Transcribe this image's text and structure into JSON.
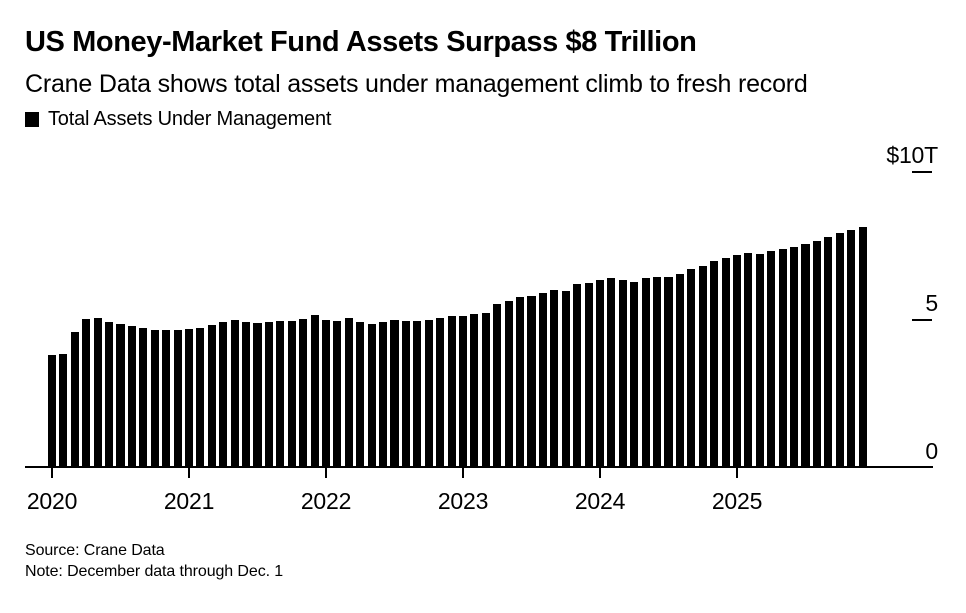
{
  "header": {
    "title": "US Money-Market Fund Assets Surpass $8 Trillion",
    "subtitle": "Crane Data shows total assets under management climb to fresh record"
  },
  "legend": {
    "label": "Total Assets Under Management",
    "swatch_color": "#000000"
  },
  "chart_data": {
    "type": "bar",
    "title": "US Money-Market Fund Assets Surpass $8 Trillion",
    "subtitle": "Crane Data shows total assets under management climb to fresh record",
    "series_name": "Total Assets Under Management",
    "unit": "USD trillions",
    "bar_color": "#000000",
    "background_color": "#ffffff",
    "grid": false,
    "legend_position": "top-left",
    "ylim": [
      0,
      10
    ],
    "y_ticks": [
      {
        "label": "$10T",
        "value": 10,
        "dash": true
      },
      {
        "label": "5",
        "value": 5,
        "dash": true
      },
      {
        "label": "0",
        "value": 0,
        "dash": false
      }
    ],
    "x_tick_labels": [
      "2020",
      "2021",
      "2022",
      "2023",
      "2024",
      "2025"
    ],
    "x": [
      "2020-01",
      "2020-02",
      "2020-03",
      "2020-04",
      "2020-05",
      "2020-06",
      "2020-07",
      "2020-08",
      "2020-09",
      "2020-10",
      "2020-11",
      "2020-12",
      "2021-01",
      "2021-02",
      "2021-03",
      "2021-04",
      "2021-05",
      "2021-06",
      "2021-07",
      "2021-08",
      "2021-09",
      "2021-10",
      "2021-11",
      "2021-12",
      "2022-01",
      "2022-02",
      "2022-03",
      "2022-04",
      "2022-05",
      "2022-06",
      "2022-07",
      "2022-08",
      "2022-09",
      "2022-10",
      "2022-11",
      "2022-12",
      "2023-01",
      "2023-02",
      "2023-03",
      "2023-04",
      "2023-05",
      "2023-06",
      "2023-07",
      "2023-08",
      "2023-09",
      "2023-10",
      "2023-11",
      "2023-12",
      "2024-01",
      "2024-02",
      "2024-03",
      "2024-04",
      "2024-05",
      "2024-06",
      "2024-07",
      "2024-08",
      "2024-09",
      "2024-10",
      "2024-11",
      "2024-12",
      "2025-01",
      "2025-02",
      "2025-03",
      "2025-04",
      "2025-05",
      "2025-06",
      "2025-07",
      "2025-08",
      "2025-09",
      "2025-10",
      "2025-11",
      "2025-12"
    ],
    "values": [
      3.76,
      3.78,
      4.52,
      4.97,
      5.01,
      4.88,
      4.8,
      4.74,
      4.66,
      4.6,
      4.59,
      4.61,
      4.63,
      4.65,
      4.77,
      4.87,
      4.95,
      4.88,
      4.84,
      4.86,
      4.89,
      4.91,
      4.97,
      5.09,
      4.93,
      4.9,
      4.99,
      4.86,
      4.81,
      4.88,
      4.93,
      4.91,
      4.91,
      4.94,
      5.01,
      5.08,
      5.06,
      5.13,
      5.18,
      5.46,
      5.56,
      5.71,
      5.75,
      5.86,
      5.94,
      5.92,
      6.14,
      6.18,
      6.29,
      6.35,
      6.27,
      6.23,
      6.34,
      6.39,
      6.4,
      6.49,
      6.66,
      6.75,
      6.94,
      7.04,
      7.12,
      7.21,
      7.16,
      7.26,
      7.33,
      7.41,
      7.5,
      7.61,
      7.73,
      7.86,
      7.97,
      8.08
    ]
  },
  "footer": {
    "source": "Source: Crane Data",
    "note": "Note: December data through Dec. 1"
  }
}
